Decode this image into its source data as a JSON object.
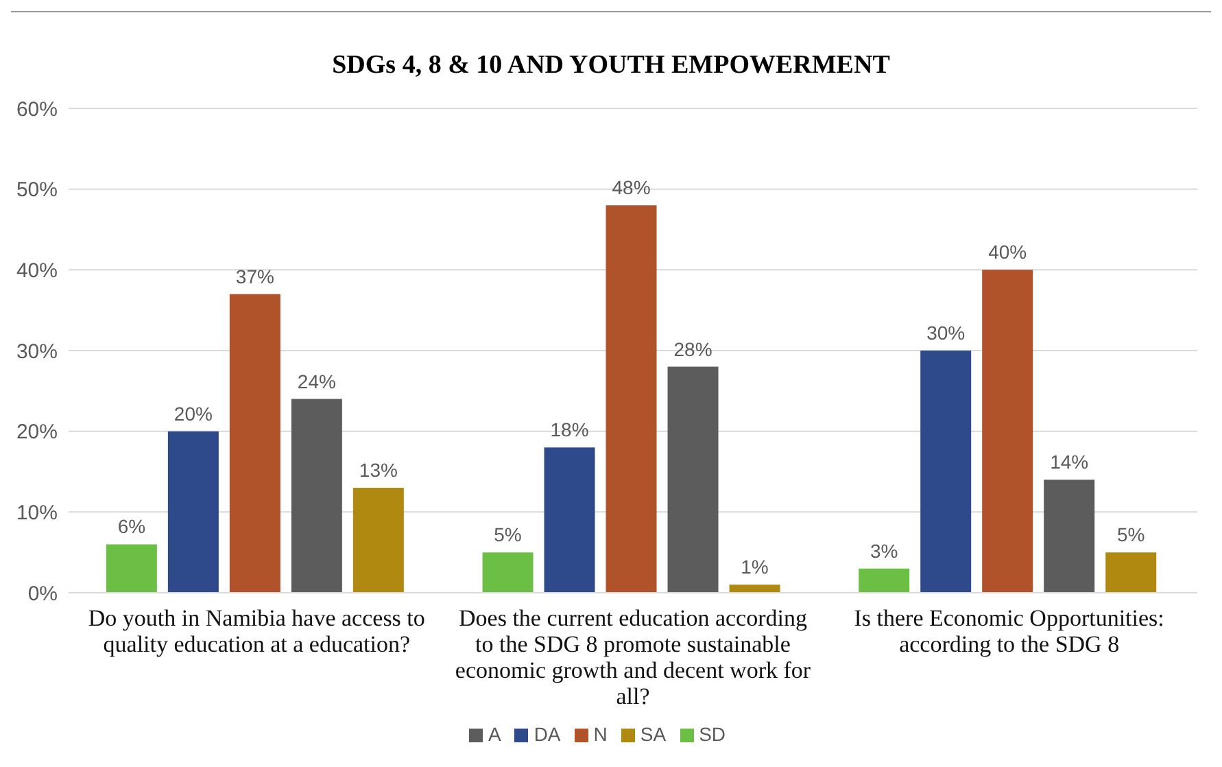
{
  "chart_data": {
    "type": "bar",
    "title": "SDGs 4, 8 & 10 AND YOUTH EMPOWERMENT",
    "categories": [
      "Do youth in Namibia have access to quality education at a education?",
      "Does the current education according to the SDG 8 promote sustainable economic growth and decent work for all?",
      "Is there Economic Opportunities: according to the SDG 8"
    ],
    "series": [
      {
        "name": "SD",
        "color": "#6cbf45",
        "values": [
          6,
          5,
          3
        ],
        "value_labels": [
          "6%",
          "5%",
          "3%"
        ]
      },
      {
        "name": "DA",
        "color": "#2e4a8a",
        "values": [
          20,
          18,
          30
        ],
        "value_labels": [
          "20%",
          "18%",
          "30%"
        ]
      },
      {
        "name": "N",
        "color": "#b0522a",
        "values": [
          37,
          48,
          40
        ],
        "value_labels": [
          "37%",
          "48%",
          "40%"
        ]
      },
      {
        "name": "A",
        "color": "#5c5c5c",
        "values": [
          24,
          28,
          14
        ],
        "value_labels": [
          "24%",
          "28%",
          "14%"
        ]
      },
      {
        "name": "SA",
        "color": "#b08a10",
        "values": [
          13,
          1,
          5
        ],
        "value_labels": [
          "13%",
          "1%",
          "5%"
        ]
      }
    ],
    "ylim": [
      0,
      60
    ],
    "yticks": [
      {
        "value": 0,
        "label": "0%"
      },
      {
        "value": 10,
        "label": "10%"
      },
      {
        "value": 20,
        "label": "20%"
      },
      {
        "value": 30,
        "label": "30%"
      },
      {
        "value": 40,
        "label": "40%"
      },
      {
        "value": 50,
        "label": "50%"
      },
      {
        "value": 60,
        "label": "60%"
      }
    ],
    "grid": "y",
    "legend": "bottom"
  }
}
